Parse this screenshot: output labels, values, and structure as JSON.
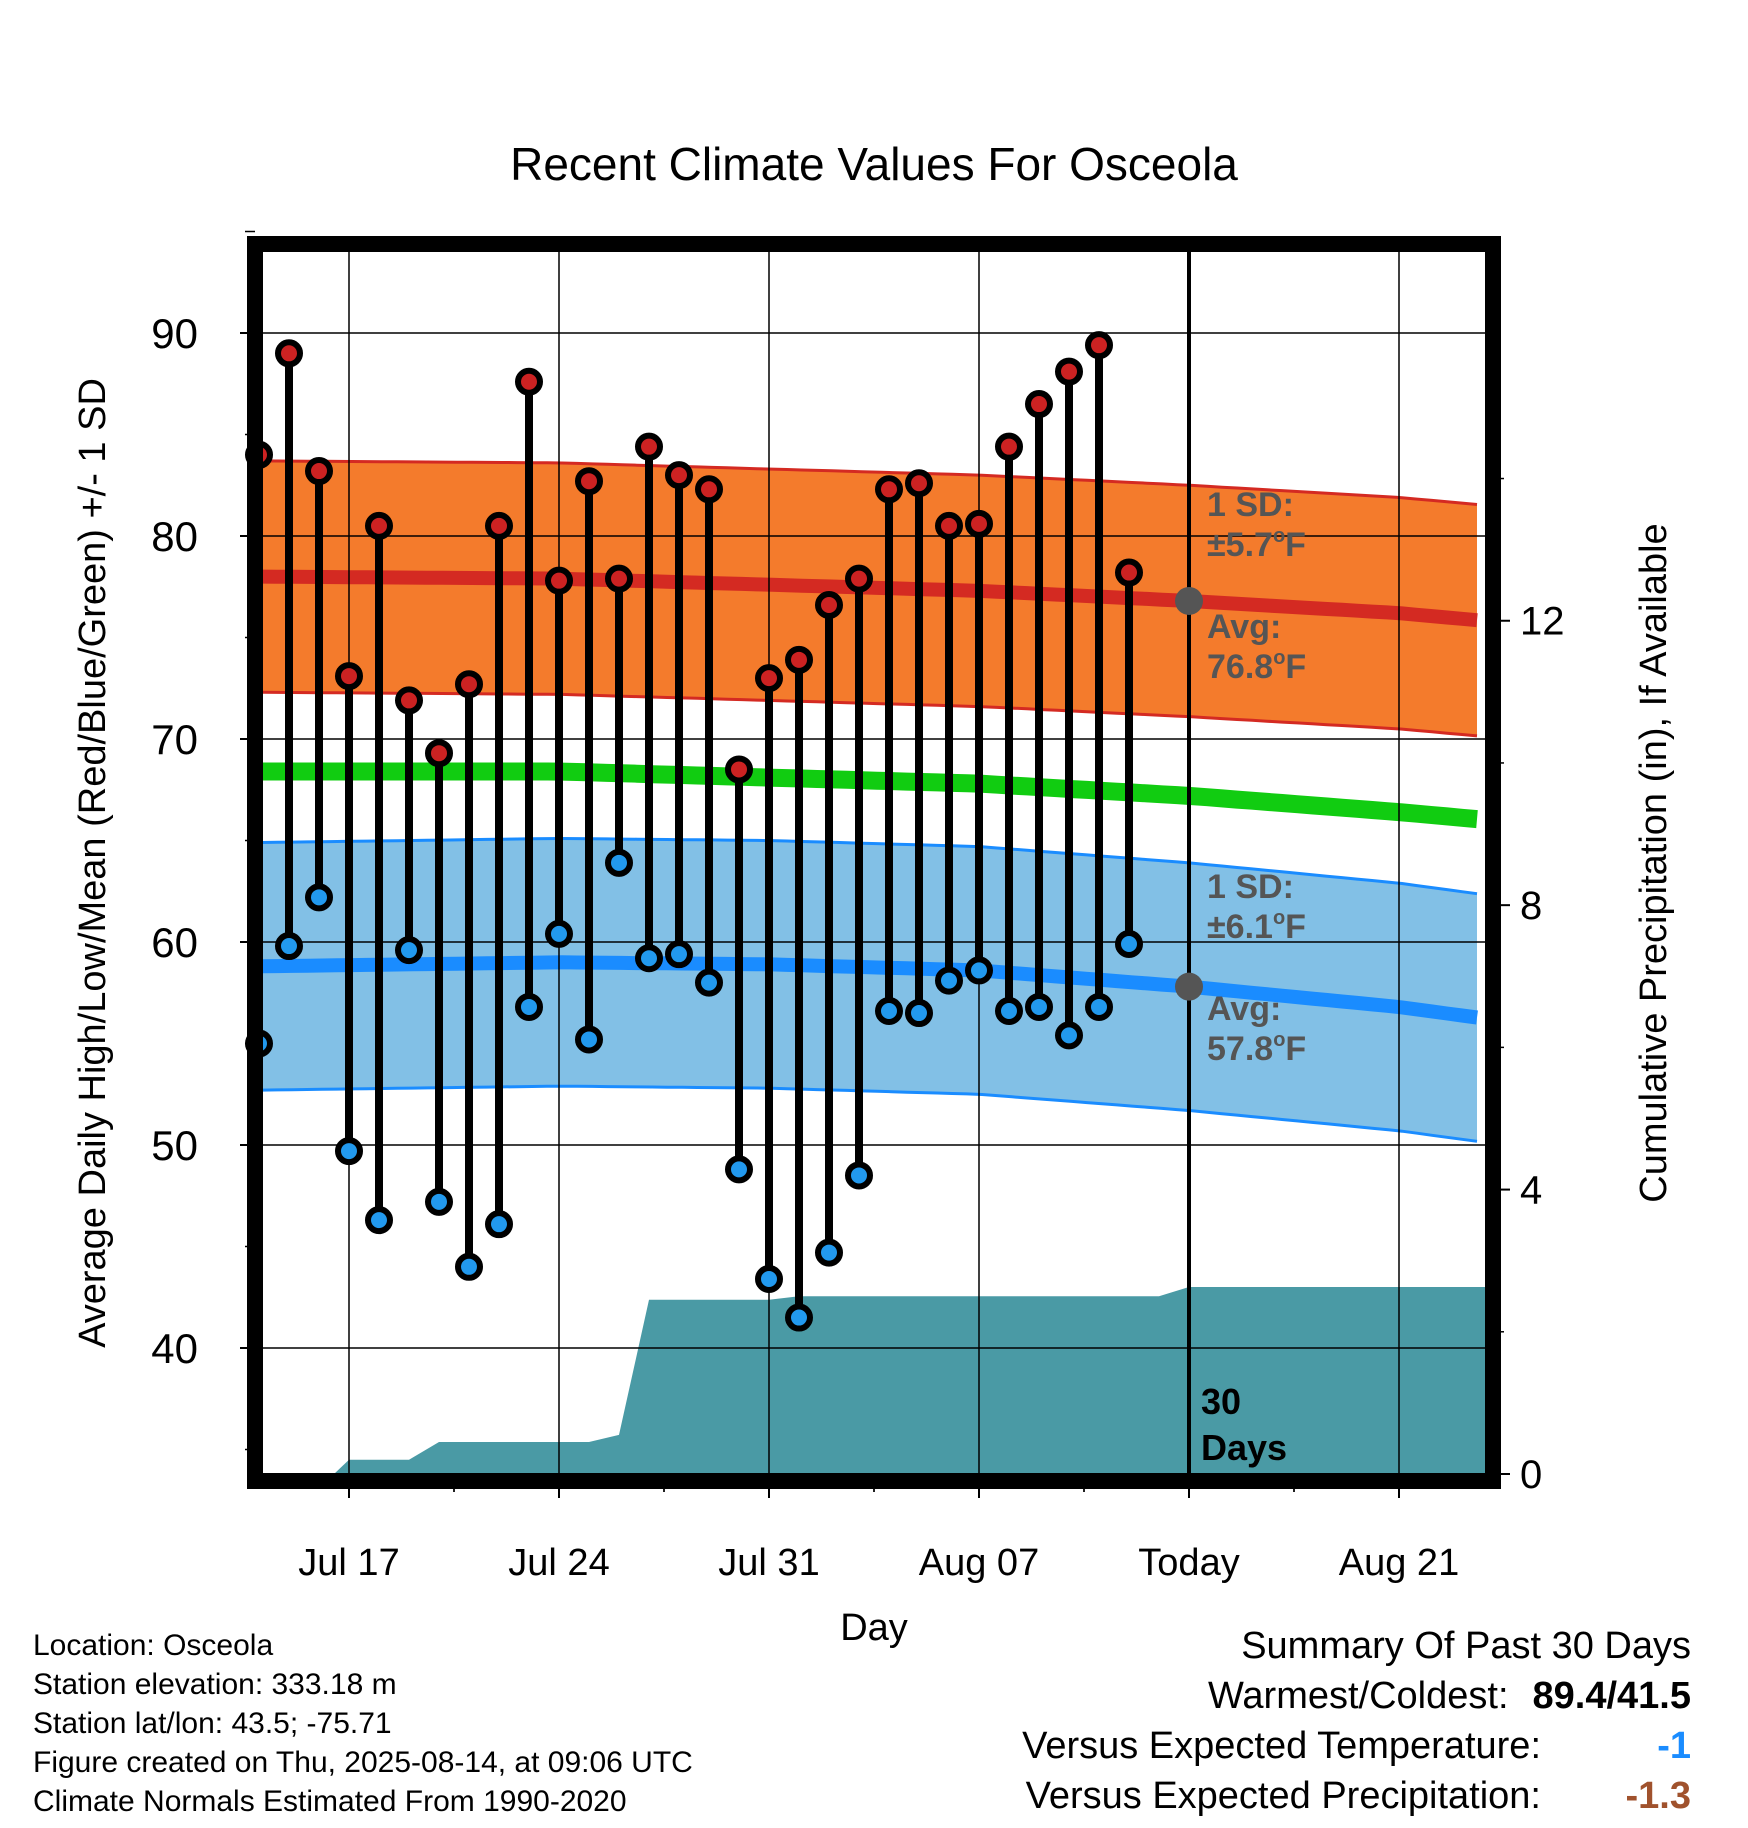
{
  "chart_data": {
    "type": "line",
    "title": "Recent Climate Values For Osceola",
    "xlabel": "Day",
    "ylabel": "Average Daily High/Low/Mean (Red/Blue/Green) +/- 1 SD",
    "y2label": "Cumulative Precipitation (in), If Available",
    "ylim": [
      34,
      95
    ],
    "y2lim": [
      0,
      17.2
    ],
    "y_ticks": [
      40,
      50,
      60,
      70,
      80,
      90
    ],
    "y2_ticks": [
      0,
      4,
      8,
      12
    ],
    "x_ticks": [
      "Jul 17",
      "Jul 24",
      "Jul 31",
      "Aug 07",
      "Today",
      "Aug 21"
    ],
    "x_tick_days": [
      17,
      24,
      31,
      38,
      45,
      52
    ],
    "today_day": 45,
    "grid": true,
    "days": [
      14,
      15,
      16,
      17,
      18,
      19,
      20,
      21,
      22,
      23,
      24,
      25,
      26,
      27,
      28,
      29,
      30,
      31,
      32,
      33,
      34,
      35,
      36,
      37,
      38,
      39,
      40,
      41,
      42,
      43,
      44
    ],
    "highs": [
      84.0,
      89.0,
      83.2,
      73.1,
      80.5,
      71.9,
      69.3,
      72.7,
      80.5,
      87.6,
      77.8,
      82.7,
      77.9,
      84.4,
      83.0,
      82.3,
      68.5,
      73.0,
      73.9,
      76.6,
      77.9,
      82.3,
      82.6,
      80.5,
      80.6,
      84.4,
      86.5,
      88.1,
      89.4,
      78.2,
      null
    ],
    "lows": [
      55.0,
      59.8,
      62.2,
      49.7,
      46.3,
      59.6,
      47.2,
      44.0,
      46.1,
      56.8,
      60.4,
      55.2,
      63.9,
      59.2,
      59.4,
      58.0,
      48.8,
      43.4,
      41.5,
      44.7,
      48.5,
      56.6,
      56.5,
      58.1,
      58.6,
      56.6,
      56.8,
      55.4,
      56.8,
      59.9,
      null
    ],
    "normal_high": [
      {
        "day": 14,
        "value": 78.0
      },
      {
        "day": 24,
        "value": 77.9
      },
      {
        "day": 31,
        "value": 77.6
      },
      {
        "day": 38,
        "value": 77.3
      },
      {
        "day": 45,
        "value": 76.8
      },
      {
        "day": 52,
        "value": 76.2
      },
      {
        "day": 55,
        "value": 75.8
      }
    ],
    "normal_high_sd": 5.7,
    "normal_mean": [
      {
        "day": 14,
        "value": 68.4
      },
      {
        "day": 24,
        "value": 68.4
      },
      {
        "day": 31,
        "value": 68.1
      },
      {
        "day": 38,
        "value": 67.8
      },
      {
        "day": 45,
        "value": 67.2
      },
      {
        "day": 52,
        "value": 66.4
      },
      {
        "day": 55,
        "value": 66.0
      }
    ],
    "normal_low": [
      {
        "day": 14,
        "value": 58.8
      },
      {
        "day": 24,
        "value": 59.0
      },
      {
        "day": 31,
        "value": 58.9
      },
      {
        "day": 38,
        "value": 58.6
      },
      {
        "day": 45,
        "value": 57.8
      },
      {
        "day": 52,
        "value": 56.8
      },
      {
        "day": 55,
        "value": 56.2
      }
    ],
    "normal_low_sd": 6.1,
    "precip_cumulative": [
      {
        "day": 13.5,
        "value": 0.0
      },
      {
        "day": 16.5,
        "value": 0.0
      },
      {
        "day": 17,
        "value": 0.2
      },
      {
        "day": 19,
        "value": 0.2
      },
      {
        "day": 20,
        "value": 0.45
      },
      {
        "day": 25,
        "value": 0.45
      },
      {
        "day": 26,
        "value": 0.55
      },
      {
        "day": 27,
        "value": 2.45
      },
      {
        "day": 31,
        "value": 2.45
      },
      {
        "day": 32,
        "value": 2.5
      },
      {
        "day": 44,
        "value": 2.5
      },
      {
        "day": 45,
        "value": 2.63
      },
      {
        "day": 55,
        "value": 2.63
      }
    ],
    "annotations": {
      "high_sd_label": "1 SD:",
      "high_sd_value": "±5.7",
      "high_avg_label": "Avg:",
      "high_avg_value": "76.8",
      "low_sd_label": "1 SD:",
      "low_sd_value": "±6.1",
      "low_avg_label": "Avg:",
      "low_avg_value": "57.8",
      "degree_unit": "o",
      "temp_unit": "F",
      "days_label_1": "30",
      "days_label_2": "Days"
    },
    "colors": {
      "high_band": "#f47b2c",
      "high_line": "#d42a22",
      "mean_line": "#11cc11",
      "low_band": "#82c0e6",
      "low_line": "#1a8cff",
      "precip": "#4a9aa5",
      "high_point": "#cc2222",
      "low_point": "#2299ee",
      "annotation_text": "#555555",
      "avg_marker": "#555555"
    }
  },
  "info": {
    "location": "Location: Osceola",
    "elevation": "Station elevation: 333.18 m",
    "latlon": "Station lat/lon: 43.5; -75.71",
    "created": "Figure created on Thu, 2025-08-14, at 09:06 UTC",
    "normals": "Climate Normals Estimated From 1990-2020"
  },
  "summary": {
    "title": "Summary Of Past 30 Days",
    "warmest_label": "Warmest/Coldest:",
    "warmest_value": "89.4/41.5",
    "temp_label": "Versus Expected Temperature:",
    "temp_value": "-1",
    "temp_color": "#1a8cff",
    "precip_label": "Versus Expected Precipitation:",
    "precip_value": "-1.3",
    "precip_color": "#a0522d"
  }
}
